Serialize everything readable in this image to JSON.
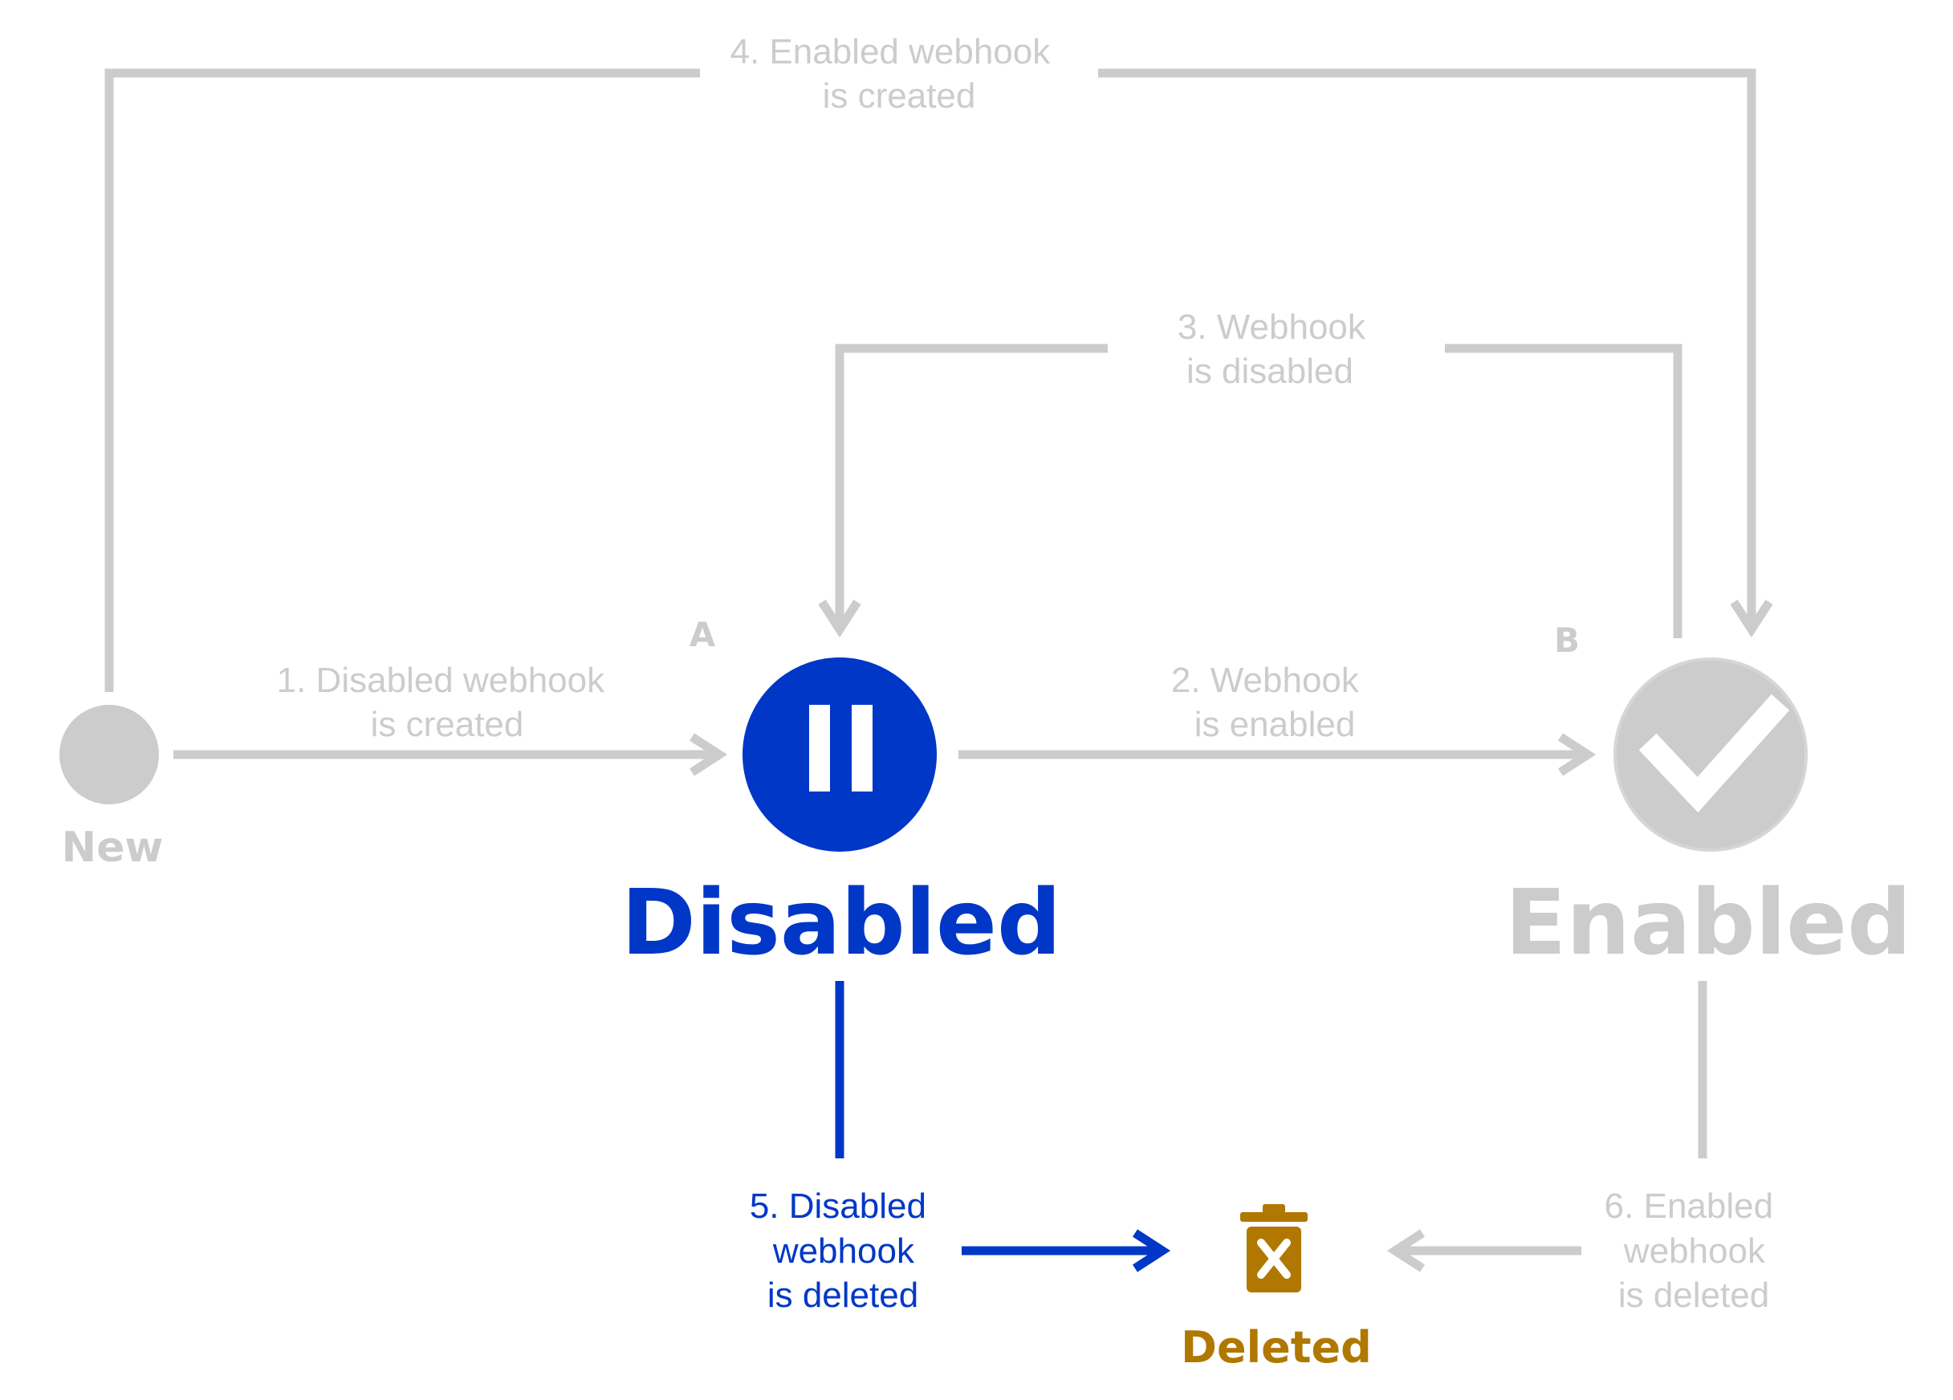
{
  "colors": {
    "inactive": "#cccccc",
    "active": "#0037c7",
    "deleted": "#b07800",
    "white": "#ffffff"
  },
  "states": {
    "new": {
      "label": "New",
      "icon": "circle-icon"
    },
    "disabled": {
      "label": "Disabled",
      "marker": "A",
      "icon": "pause-icon"
    },
    "enabled": {
      "label": "Enabled",
      "marker": "B",
      "icon": "check-icon"
    },
    "deleted": {
      "label": "Deleted",
      "icon": "trash-icon"
    }
  },
  "transitions": [
    {
      "id": "t1",
      "lines": [
        "1. Disabled webhook",
        "is created"
      ]
    },
    {
      "id": "t2",
      "lines": [
        "2. Webhook",
        "is enabled"
      ]
    },
    {
      "id": "t3",
      "lines": [
        "3. Webhook",
        "is disabled"
      ]
    },
    {
      "id": "t4",
      "lines": [
        "4. Enabled webhook",
        "is created"
      ]
    },
    {
      "id": "t5",
      "lines": [
        "5. Disabled",
        "webhook",
        "is deleted"
      ]
    },
    {
      "id": "t6",
      "lines": [
        "6. Enabled",
        "webhook",
        "is deleted"
      ]
    }
  ]
}
